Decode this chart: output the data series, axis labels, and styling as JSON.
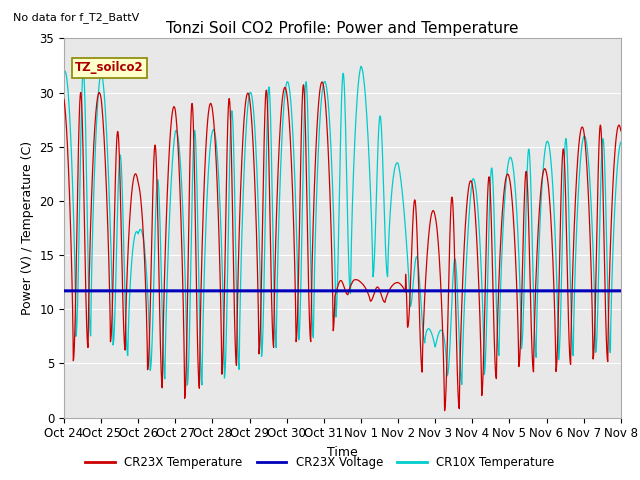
{
  "title": "Tonzi Soil CO2 Profile: Power and Temperature",
  "subtitle": "No data for f_T2_BattV",
  "ylabel": "Power (V) / Temperature (C)",
  "xlabel": "Time",
  "ylim": [
    0,
    35
  ],
  "background_color": "#e8e8e8",
  "cr23x_color": "#cc0000",
  "cr10x_color": "#00cccc",
  "voltage_color": "#0000bb",
  "voltage_value": 11.7,
  "legend_label_1": "CR23X Temperature",
  "legend_label_2": "CR23X Voltage",
  "legend_label_3": "CR10X Temperature",
  "watermark_label": "TZ_soilco2",
  "x_tick_labels": [
    "Oct 24",
    "Oct 25",
    "Oct 26",
    "Oct 27",
    "Oct 28",
    "Oct 29",
    "Oct 30",
    "Oct 31",
    "Nov 1",
    "Nov 2",
    "Nov 3",
    "Nov 4",
    "Nov 5",
    "Nov 6",
    "Nov 7",
    "Nov 8"
  ],
  "title_fontsize": 11,
  "axis_label_fontsize": 9,
  "tick_fontsize": 8.5
}
